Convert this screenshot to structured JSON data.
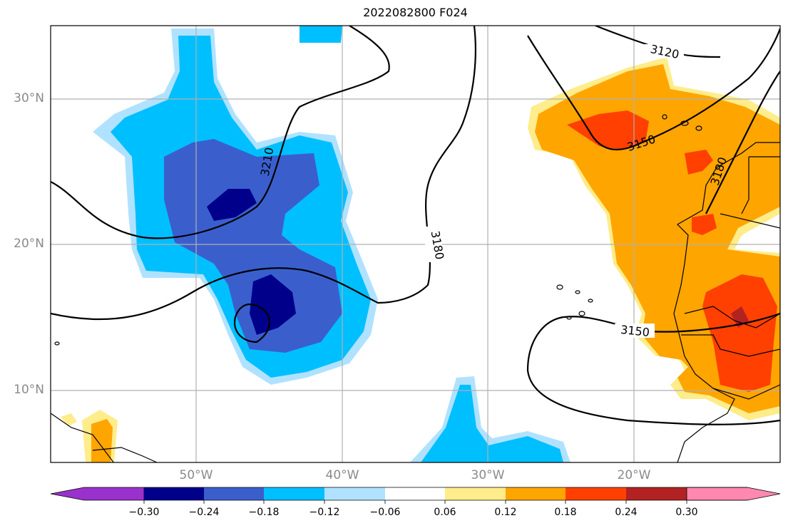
{
  "title": "2022082800 F024",
  "axes": {
    "lon_ticks": [
      "50°W",
      "40°W",
      "30°W",
      "20°W"
    ],
    "lat_ticks": [
      "30°N",
      "20°N",
      "10°N"
    ]
  },
  "contours": {
    "labels": [
      "3120",
      "3150",
      "3180",
      "3210",
      "3180",
      "3150"
    ]
  },
  "colorbar": {
    "ticks": [
      "−0.30",
      "−0.24",
      "−0.18",
      "−0.12",
      "−0.06",
      "0.06",
      "0.12",
      "0.18",
      "0.24",
      "0.30"
    ],
    "colors": [
      "#9932cc",
      "#00008b",
      "#3a5fcd",
      "#00bfff",
      "#b0e2ff",
      "#ffffff",
      "#ffec8b",
      "#ffa500",
      "#ff4000",
      "#b22222",
      "#ff88b0"
    ]
  }
}
